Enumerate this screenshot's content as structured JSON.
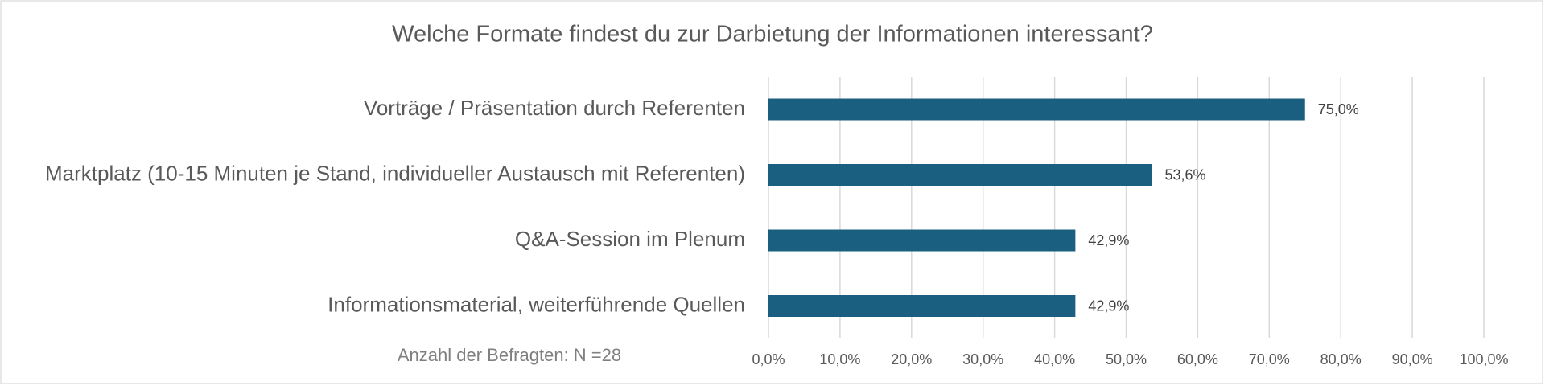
{
  "chart_data": {
    "type": "bar",
    "orientation": "horizontal",
    "title": "Welche Formate findest du zur Darbietung der Informationen interessant?",
    "annotation": "Anzahl der Befragten: N =28",
    "categories": [
      "Vorträge / Präsentation durch Referenten",
      "Marktplatz (10-15 Minuten je Stand, individueller Austausch mit Referenten)",
      "Q&A-Session im Plenum",
      "Informationsmaterial, weiterführende Quellen"
    ],
    "values": [
      75.0,
      53.6,
      42.9,
      42.9
    ],
    "value_labels": [
      "75,0%",
      "53,6%",
      "42,9%",
      "42,9%"
    ],
    "color": "#1a5f80",
    "xlim": [
      0,
      100
    ],
    "xticks": [
      {
        "value": 0,
        "label": "0,0%"
      },
      {
        "value": 10,
        "label": "10,0%"
      },
      {
        "value": 20,
        "label": "20,0%"
      },
      {
        "value": 30,
        "label": "30,0%"
      },
      {
        "value": 40,
        "label": "40,0%"
      },
      {
        "value": 50,
        "label": "50,0%"
      },
      {
        "value": 60,
        "label": "60,0%"
      },
      {
        "value": 70,
        "label": "70,0%"
      },
      {
        "value": 80,
        "label": "80,0%"
      },
      {
        "value": 90,
        "label": "90,0%"
      },
      {
        "value": 100,
        "label": "100,0%"
      }
    ],
    "grid": true
  }
}
